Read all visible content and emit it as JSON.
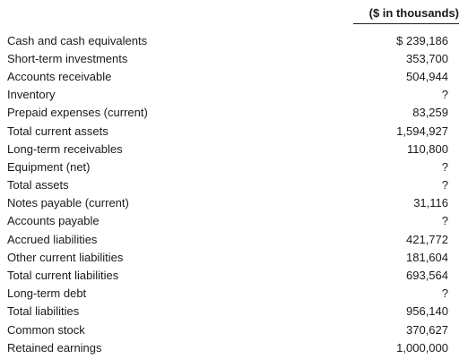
{
  "header": {
    "units": "($ in thousands)"
  },
  "rows": [
    {
      "label": "Cash and cash equivalents",
      "value": "$ 239,186"
    },
    {
      "label": "Short-term investments",
      "value": "353,700"
    },
    {
      "label": "Accounts receivable",
      "value": "504,944"
    },
    {
      "label": "Inventory",
      "value": "?"
    },
    {
      "label": "Prepaid expenses (current)",
      "value": "83,259"
    },
    {
      "label": "Total current assets",
      "value": "1,594,927"
    },
    {
      "label": "Long-term receivables",
      "value": "110,800"
    },
    {
      "label": "Equipment (net)",
      "value": "?"
    },
    {
      "label": "Total assets",
      "value": "?"
    },
    {
      "label": "Notes payable (current)",
      "value": "31,116"
    },
    {
      "label": "Accounts payable",
      "value": "?"
    },
    {
      "label": "Accrued liabilities",
      "value": "421,772"
    },
    {
      "label": "Other current liabilities",
      "value": "181,604"
    },
    {
      "label": "Total current liabilities",
      "value": "693,564"
    },
    {
      "label": "Long-term debt",
      "value": "?"
    },
    {
      "label": "Total liabilities",
      "value": "956,140"
    },
    {
      "label": "Common stock",
      "value": "370,627"
    },
    {
      "label": "Retained earnings",
      "value": "1,000,000"
    }
  ]
}
